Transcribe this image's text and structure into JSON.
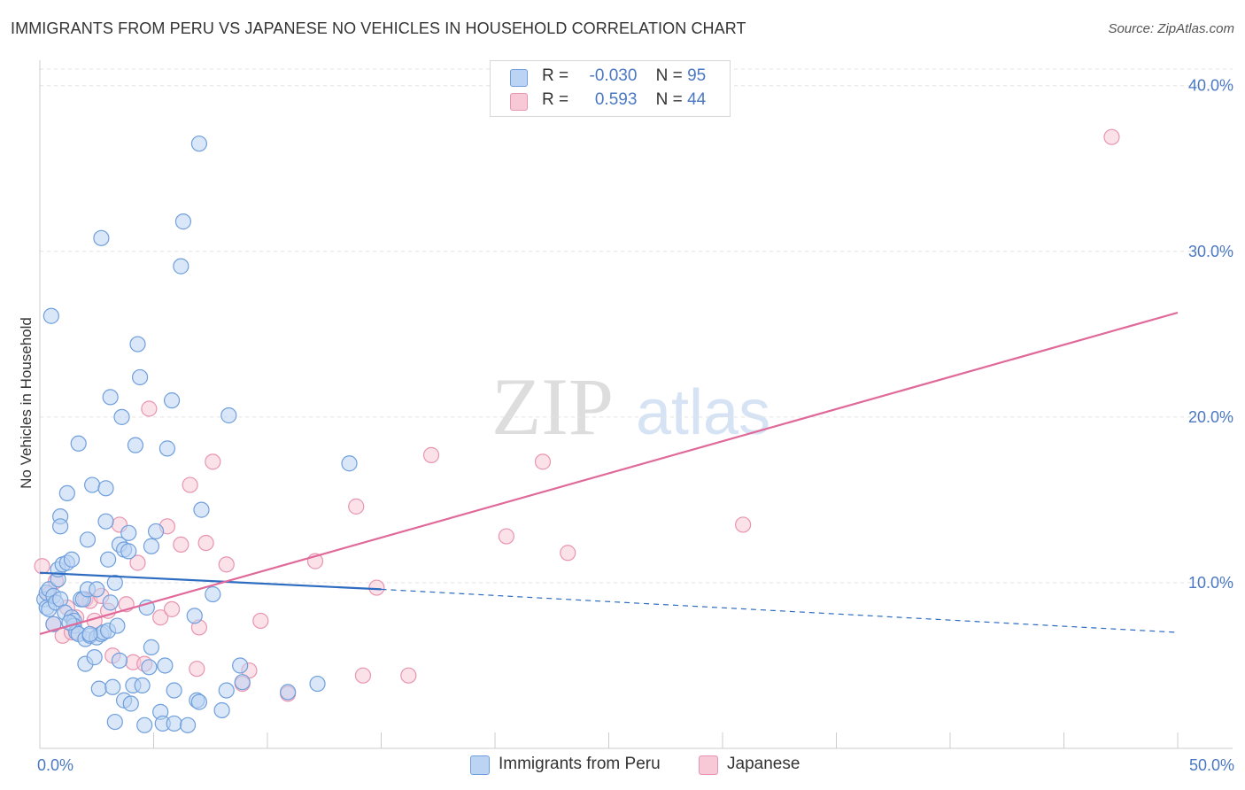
{
  "chart_data": {
    "type": "scatter",
    "title": "IMMIGRANTS FROM PERU VS JAPANESE NO VEHICLES IN HOUSEHOLD CORRELATION CHART",
    "source": "Source: ZipAtlas.com",
    "xlabel": "",
    "ylabel": "No Vehicles in Household",
    "xlim": [
      0,
      50
    ],
    "ylim": [
      0,
      41
    ],
    "x_tick_labels": [
      "0.0%",
      "50.0%"
    ],
    "y_ticks": [
      10,
      20,
      30,
      40
    ],
    "y_tick_labels": [
      "10.0%",
      "20.0%",
      "30.0%",
      "40.0%"
    ],
    "watermark": {
      "zip": "ZIP",
      "atlas": "atlas"
    },
    "legend": {
      "rows": [
        {
          "r_label": "R =",
          "r_value": "-0.030",
          "n_label": "N =",
          "n_value": "95"
        },
        {
          "r_label": "R =",
          "r_value": "0.593",
          "n_label": "N =",
          "n_value": "44"
        }
      ]
    },
    "colors": {
      "peru_fill": "#bcd4f3",
      "peru_stroke": "#6f9fdc",
      "peru_line": "#2d6cc0",
      "japanese_fill": "#f7c8d6",
      "japanese_stroke": "#e895b0",
      "japanese_line": "#e0699a"
    },
    "series": [
      {
        "name": "Immigrants from Peru",
        "trend": {
          "x": [
            0,
            15,
            50
          ],
          "y": [
            10.6,
            9.6,
            7.0
          ]
        },
        "points": [
          [
            0.2,
            9.0
          ],
          [
            0.3,
            8.5
          ],
          [
            0.3,
            9.4
          ],
          [
            0.4,
            9.6
          ],
          [
            0.4,
            8.4
          ],
          [
            0.5,
            26.1
          ],
          [
            0.6,
            9.2
          ],
          [
            0.6,
            7.5
          ],
          [
            0.7,
            8.8
          ],
          [
            0.8,
            10.2
          ],
          [
            0.8,
            10.8
          ],
          [
            0.9,
            9.0
          ],
          [
            0.9,
            14.0
          ],
          [
            0.9,
            13.4
          ],
          [
            1.0,
            11.1
          ],
          [
            1.1,
            8.2
          ],
          [
            1.2,
            11.2
          ],
          [
            1.2,
            15.4
          ],
          [
            1.4,
            11.4
          ],
          [
            1.4,
            7.9
          ],
          [
            1.5,
            7.7
          ],
          [
            1.5,
            7.4
          ],
          [
            1.6,
            7.0
          ],
          [
            1.7,
            18.4
          ],
          [
            1.7,
            6.9
          ],
          [
            1.8,
            9.0
          ],
          [
            1.9,
            9.0
          ],
          [
            2.0,
            6.6
          ],
          [
            2.0,
            5.1
          ],
          [
            2.1,
            9.6
          ],
          [
            2.1,
            12.6
          ],
          [
            2.2,
            6.8
          ],
          [
            2.3,
            15.9
          ],
          [
            2.4,
            5.5
          ],
          [
            2.5,
            9.6
          ],
          [
            2.5,
            6.7
          ],
          [
            2.6,
            3.6
          ],
          [
            2.7,
            30.8
          ],
          [
            2.7,
            6.9
          ],
          [
            2.8,
            7.0
          ],
          [
            2.9,
            15.7
          ],
          [
            2.9,
            13.7
          ],
          [
            3.0,
            7.1
          ],
          [
            3.0,
            11.4
          ],
          [
            3.1,
            21.2
          ],
          [
            3.1,
            8.8
          ],
          [
            3.2,
            3.7
          ],
          [
            3.3,
            10.0
          ],
          [
            3.3,
            1.6
          ],
          [
            3.5,
            12.3
          ],
          [
            3.5,
            5.3
          ],
          [
            3.6,
            20.0
          ],
          [
            3.7,
            12.0
          ],
          [
            3.7,
            2.9
          ],
          [
            3.9,
            11.9
          ],
          [
            3.9,
            13.0
          ],
          [
            4.0,
            2.7
          ],
          [
            4.1,
            3.8
          ],
          [
            4.2,
            18.3
          ],
          [
            4.3,
            24.4
          ],
          [
            4.4,
            22.4
          ],
          [
            4.5,
            3.8
          ],
          [
            4.6,
            1.4
          ],
          [
            4.7,
            8.5
          ],
          [
            4.8,
            4.9
          ],
          [
            4.9,
            6.1
          ],
          [
            4.9,
            12.2
          ],
          [
            5.1,
            13.1
          ],
          [
            5.3,
            2.2
          ],
          [
            5.4,
            1.5
          ],
          [
            5.5,
            5.0
          ],
          [
            5.6,
            18.1
          ],
          [
            5.8,
            21.0
          ],
          [
            5.9,
            1.5
          ],
          [
            5.9,
            3.5
          ],
          [
            6.2,
            29.1
          ],
          [
            6.3,
            31.8
          ],
          [
            6.5,
            1.4
          ],
          [
            6.8,
            8.0
          ],
          [
            6.9,
            2.9
          ],
          [
            7.0,
            2.8
          ],
          [
            7.0,
            36.5
          ],
          [
            7.1,
            14.4
          ],
          [
            7.6,
            9.3
          ],
          [
            8.0,
            2.3
          ],
          [
            8.2,
            3.5
          ],
          [
            8.3,
            20.1
          ],
          [
            8.8,
            5.0
          ],
          [
            8.9,
            4.0
          ],
          [
            10.9,
            3.4
          ],
          [
            12.2,
            3.9
          ],
          [
            13.6,
            17.2
          ],
          [
            1.3,
            7.6
          ],
          [
            2.2,
            6.9
          ],
          [
            3.4,
            7.4
          ]
        ]
      },
      {
        "name": "Japanese",
        "trend": {
          "x": [
            0,
            50
          ],
          "y": [
            6.9,
            26.3
          ]
        },
        "points": [
          [
            0.1,
            11.0
          ],
          [
            0.4,
            9.3
          ],
          [
            0.6,
            7.5
          ],
          [
            0.7,
            10.1
          ],
          [
            1.0,
            6.8
          ],
          [
            1.2,
            8.5
          ],
          [
            1.4,
            7.0
          ],
          [
            1.6,
            7.9
          ],
          [
            2.0,
            9.0
          ],
          [
            2.2,
            8.9
          ],
          [
            2.4,
            7.7
          ],
          [
            2.7,
            9.2
          ],
          [
            3.0,
            8.3
          ],
          [
            3.2,
            5.6
          ],
          [
            3.5,
            13.5
          ],
          [
            3.8,
            8.7
          ],
          [
            4.1,
            5.2
          ],
          [
            4.3,
            11.2
          ],
          [
            4.6,
            5.1
          ],
          [
            4.8,
            20.5
          ],
          [
            5.3,
            7.9
          ],
          [
            5.6,
            13.4
          ],
          [
            5.8,
            8.4
          ],
          [
            6.2,
            12.3
          ],
          [
            6.6,
            15.9
          ],
          [
            6.9,
            4.8
          ],
          [
            7.0,
            7.3
          ],
          [
            7.3,
            12.4
          ],
          [
            7.6,
            17.3
          ],
          [
            8.2,
            11.1
          ],
          [
            8.9,
            3.9
          ],
          [
            9.2,
            4.7
          ],
          [
            9.7,
            7.7
          ],
          [
            10.9,
            3.3
          ],
          [
            12.1,
            11.3
          ],
          [
            13.9,
            14.6
          ],
          [
            14.2,
            4.4
          ],
          [
            14.8,
            9.7
          ],
          [
            16.2,
            4.4
          ],
          [
            17.2,
            17.7
          ],
          [
            20.5,
            12.8
          ],
          [
            22.1,
            17.3
          ],
          [
            23.2,
            11.8
          ],
          [
            30.9,
            13.5
          ],
          [
            47.1,
            36.9
          ]
        ]
      }
    ]
  },
  "bottom_legend": {
    "peru": "Immigrants from Peru",
    "japanese": "Japanese"
  }
}
